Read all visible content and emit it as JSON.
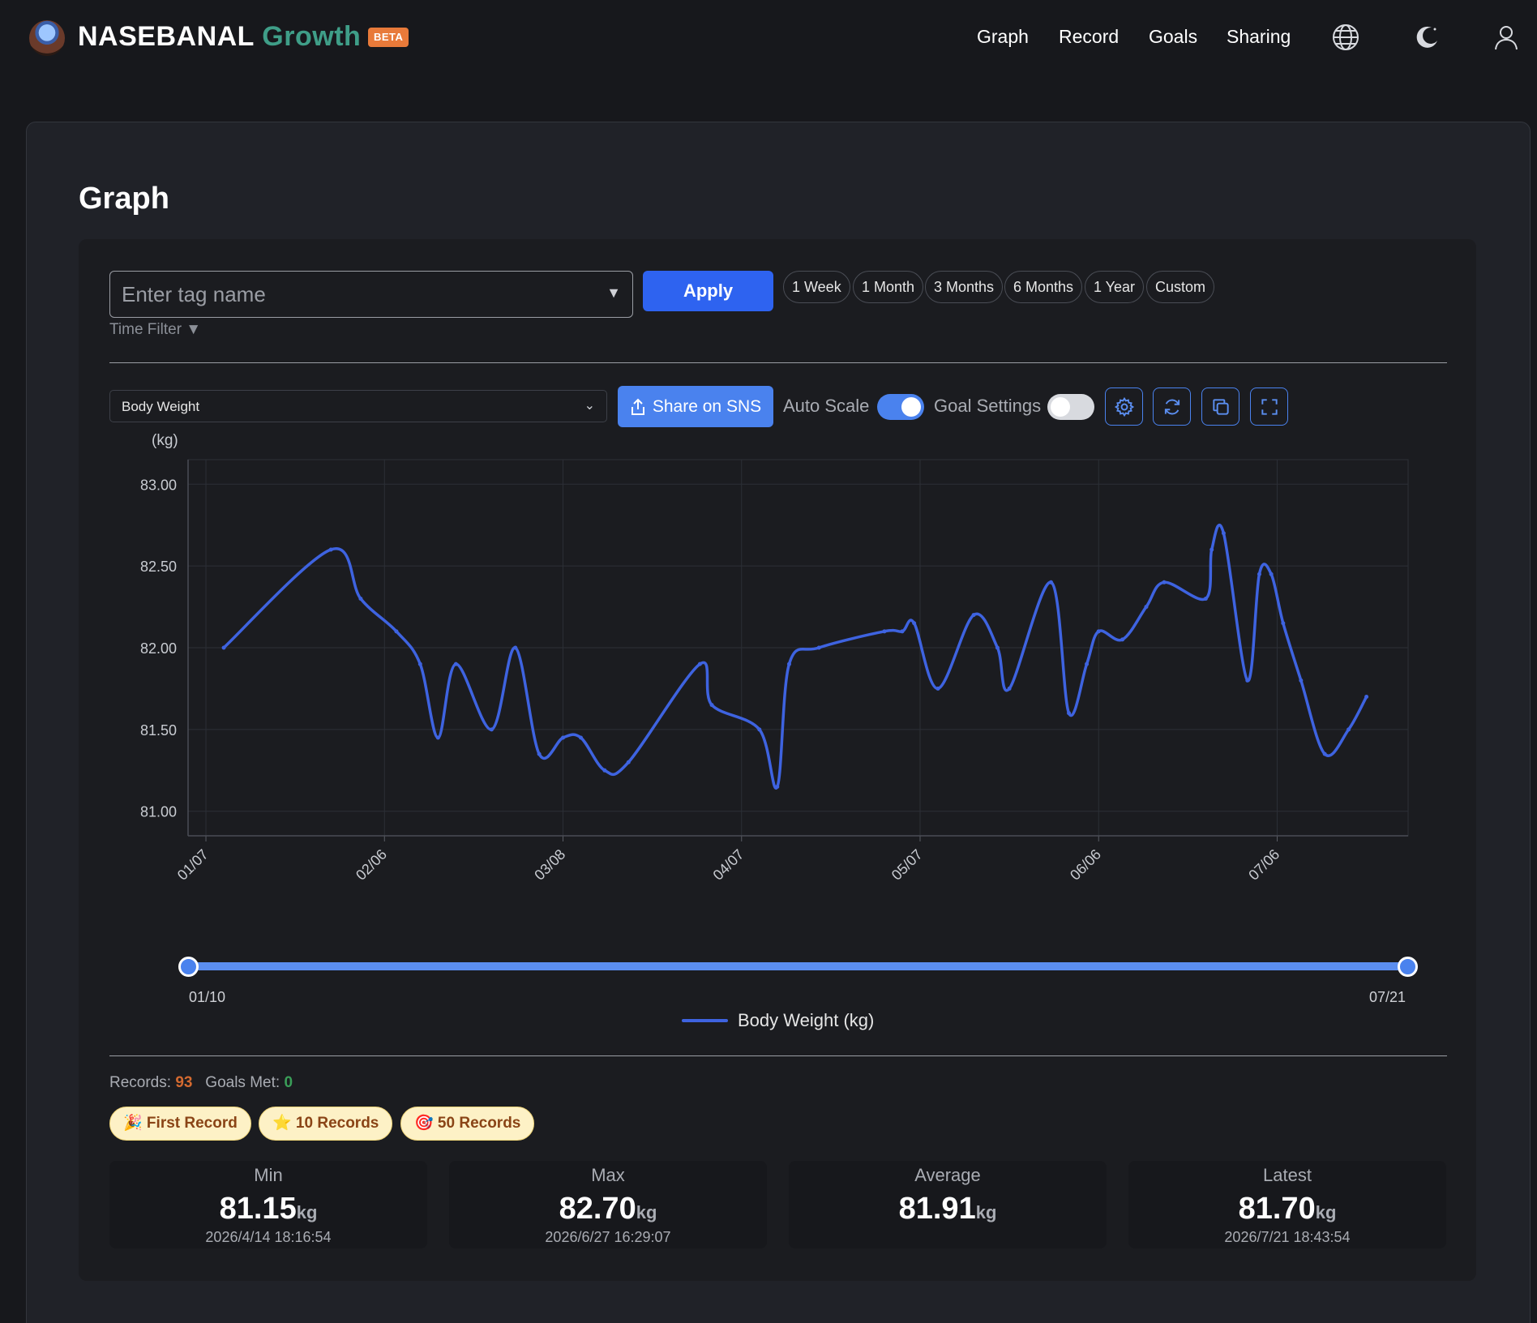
{
  "header": {
    "brand_primary": "NASEBANAL",
    "brand_secondary": "Growth",
    "badge": "BETA",
    "nav": [
      "Graph",
      "Record",
      "Goals",
      "Sharing"
    ],
    "icons": [
      "globe-icon",
      "moon-icon",
      "user-icon"
    ]
  },
  "page": {
    "title": "Graph"
  },
  "filter": {
    "tag_placeholder": "Enter tag name",
    "apply_label": "Apply",
    "ranges": [
      "1 Week",
      "1 Month",
      "3 Months",
      "6 Months",
      "1 Year",
      "Custom"
    ],
    "time_filter_label": "Time Filter ▼"
  },
  "toolbar": {
    "metric": "Body Weight",
    "share_label": "Share on SNS",
    "auto_scale_label": "Auto Scale",
    "auto_scale_on": true,
    "goal_settings_label": "Goal Settings",
    "goal_settings_on": false,
    "tools": [
      "settings-icon",
      "refresh-icon",
      "copy-icon",
      "fullscreen-icon"
    ]
  },
  "chart_data": {
    "type": "line",
    "ylabel": "(kg)",
    "ylim": [
      80.85,
      83.15
    ],
    "yticks": [
      81.0,
      81.5,
      82.0,
      82.5,
      83.0
    ],
    "ytick_labels": [
      "81.00",
      "81.50",
      "82.00",
      "82.50",
      "83.00"
    ],
    "xlim": [
      "2026-01-04",
      "2026-07-28"
    ],
    "xtick_labels": [
      "01/07",
      "02/06",
      "03/08",
      "04/07",
      "05/07",
      "06/06",
      "07/06"
    ],
    "grid": true,
    "color": "#3e63e0",
    "series": [
      {
        "name": "Body Weight (kg)",
        "points": [
          [
            "2026-01-10",
            82.0
          ],
          [
            "2026-01-28",
            82.6
          ],
          [
            "2026-02-02",
            82.3
          ],
          [
            "2026-02-08",
            82.1
          ],
          [
            "2026-02-12",
            81.9
          ],
          [
            "2026-02-15",
            81.45
          ],
          [
            "2026-02-18",
            81.9
          ],
          [
            "2026-02-24",
            81.5
          ],
          [
            "2026-02-28",
            82.0
          ],
          [
            "2026-03-04",
            81.35
          ],
          [
            "2026-03-08",
            81.45
          ],
          [
            "2026-03-11",
            81.45
          ],
          [
            "2026-03-15",
            81.25
          ],
          [
            "2026-03-19",
            81.3
          ],
          [
            "2026-03-31",
            81.9
          ],
          [
            "2026-04-02",
            81.65
          ],
          [
            "2026-04-10",
            81.5
          ],
          [
            "2026-04-13",
            81.15
          ],
          [
            "2026-04-15",
            81.9
          ],
          [
            "2026-04-20",
            82.0
          ],
          [
            "2026-05-01",
            82.1
          ],
          [
            "2026-05-04",
            82.1
          ],
          [
            "2026-05-06",
            82.15
          ],
          [
            "2026-05-10",
            81.75
          ],
          [
            "2026-05-16",
            82.2
          ],
          [
            "2026-05-20",
            82.0
          ],
          [
            "2026-05-22",
            81.75
          ],
          [
            "2026-05-29",
            82.4
          ],
          [
            "2026-06-01",
            81.6
          ],
          [
            "2026-06-04",
            81.9
          ],
          [
            "2026-06-06",
            82.1
          ],
          [
            "2026-06-10",
            82.05
          ],
          [
            "2026-06-14",
            82.25
          ],
          [
            "2026-06-17",
            82.4
          ],
          [
            "2026-06-24",
            82.3
          ],
          [
            "2026-06-25",
            82.6
          ],
          [
            "2026-06-27",
            82.7
          ],
          [
            "2026-07-01",
            81.8
          ],
          [
            "2026-07-03",
            82.45
          ],
          [
            "2026-07-05",
            82.45
          ],
          [
            "2026-07-07",
            82.15
          ],
          [
            "2026-07-10",
            81.8
          ],
          [
            "2026-07-14",
            81.35
          ],
          [
            "2026-07-18",
            81.5
          ],
          [
            "2026-07-21",
            81.7
          ]
        ]
      }
    ]
  },
  "range_slider": {
    "start": "01/10",
    "end": "07/21",
    "start_fraction": 0.0,
    "end_fraction": 1.0
  },
  "legend": {
    "label": "Body Weight (kg)"
  },
  "summary": {
    "records_label": "Records:",
    "records_value": "93",
    "goals_label": "Goals Met:",
    "goals_value": "0"
  },
  "badges": [
    "🎉 First Record",
    "⭐ 10 Records",
    "🎯 50 Records"
  ],
  "stats": [
    {
      "title": "Min",
      "value": "81.15",
      "unit": "kg",
      "date": "2026/4/14 18:16:54"
    },
    {
      "title": "Max",
      "value": "82.70",
      "unit": "kg",
      "date": "2026/6/27 16:29:07"
    },
    {
      "title": "Average",
      "value": "81.91",
      "unit": "kg",
      "date": ""
    },
    {
      "title": "Latest",
      "value": "81.70",
      "unit": "kg",
      "date": "2026/7/21 18:43:54"
    }
  ],
  "colors": {
    "accent": "#2e63f0",
    "line": "#3e63e0",
    "brand_green": "#3f9e88",
    "beta_orange": "#e87a3a"
  }
}
